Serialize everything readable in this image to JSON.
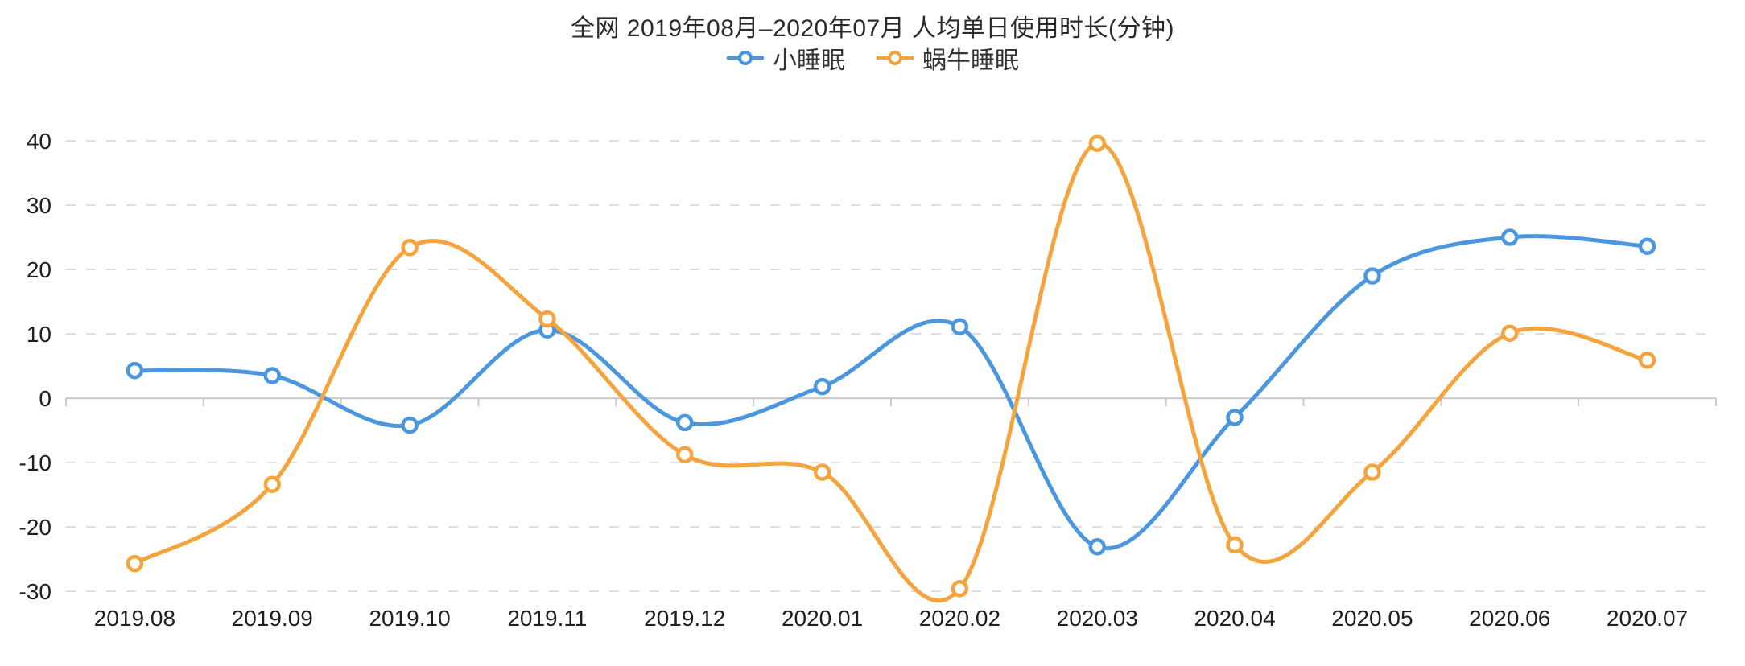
{
  "chart": {
    "title": "全网 2019年08月–2020年07月 人均单日使用时长(分钟)",
    "legend": [
      {
        "label": "小睡眠",
        "color": "#4A97E0"
      },
      {
        "label": "蜗牛睡眠",
        "color": "#F5A43D"
      }
    ]
  },
  "chart_data": {
    "type": "line",
    "title": "全网 2019年08月–2020年07月 人均单日使用时长(分钟)",
    "categories": [
      "2019.08",
      "2019.09",
      "2019.10",
      "2019.11",
      "2019.12",
      "2020.01",
      "2020.02",
      "2020.03",
      "2020.04",
      "2020.05",
      "2020.06",
      "2020.07"
    ],
    "series": [
      {
        "name": "小睡眠",
        "color": "#4A97E0",
        "values": [
          4.3,
          3.5,
          -4.2,
          10.6,
          -3.8,
          1.8,
          11.1,
          -23.1,
          -3.0,
          19.0,
          25.0,
          23.6
        ]
      },
      {
        "name": "蜗牛睡眠",
        "color": "#F5A43D",
        "values": [
          -25.7,
          -13.4,
          23.4,
          12.3,
          -8.8,
          -11.5,
          -29.6,
          39.6,
          -22.8,
          -11.5,
          10.1,
          5.9
        ]
      }
    ],
    "xlabel": "",
    "ylabel": "",
    "ylim": [
      -30,
      40
    ],
    "yticks": [
      40,
      30,
      20,
      10,
      0,
      -10,
      -20,
      -30
    ],
    "grid": "horizontal dashed, solid axis line at 0 with ticks",
    "legend_position": "top",
    "smooth": true
  },
  "style": {
    "grid_line_color": "#DDDDE6",
    "axis_line_color": "#CCCCCC",
    "axis_label_color": "#1f1f1f",
    "point_fill": "#ffffff",
    "background": "#ffffff"
  }
}
